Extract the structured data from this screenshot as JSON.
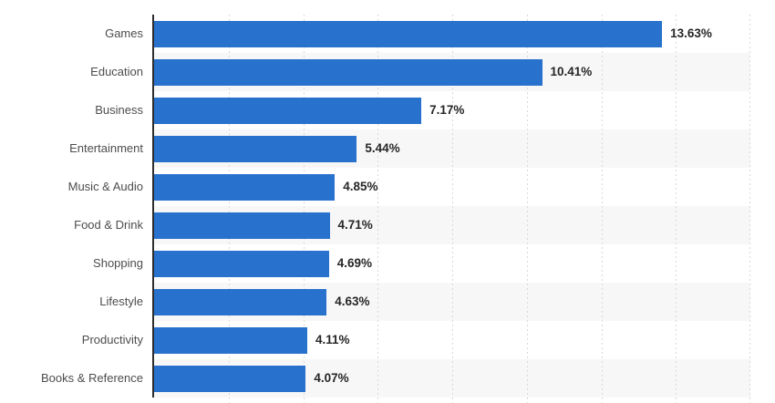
{
  "chart_data": {
    "type": "bar",
    "orientation": "horizontal",
    "title": "",
    "xlabel": "",
    "ylabel": "",
    "categories": [
      "Games",
      "Education",
      "Business",
      "Entertainment",
      "Music & Audio",
      "Food & Drink",
      "Shopping",
      "Lifestyle",
      "Productivity",
      "Books & Reference"
    ],
    "values": [
      13.63,
      10.41,
      7.17,
      5.44,
      4.85,
      4.71,
      4.69,
      4.63,
      4.11,
      4.07
    ],
    "value_labels": [
      "13.63%",
      "10.41%",
      "7.17%",
      "5.44%",
      "4.85%",
      "4.71%",
      "4.69%",
      "4.63%",
      "4.11%",
      "4.07%"
    ],
    "xlim": [
      0,
      16
    ],
    "gridline_step": 2,
    "gridline_style": "vertical-dotted",
    "axis_tick_labels_visible": false,
    "row_striping": "alternating-even-gray",
    "legend": "none"
  },
  "colors": {
    "bar": "#2871cc",
    "axis_line": "#2e2e2e",
    "gridline": "#d9d9d9",
    "row_stripe_even": "#f7f7f8",
    "row_stripe_odd": "#ffffff",
    "category_label": "#4d4d4d",
    "value_label": "#262626",
    "background": "#ffffff"
  }
}
